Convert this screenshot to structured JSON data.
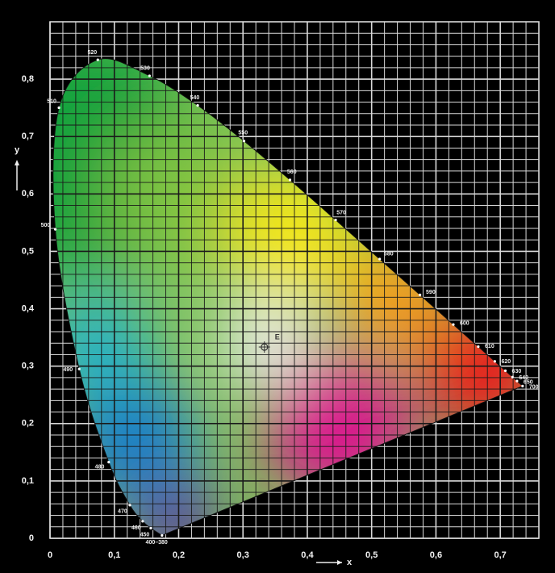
{
  "chart_data": {
    "type": "chromaticity",
    "x_label": "x",
    "y_label": "y",
    "xlim": [
      0,
      0.76
    ],
    "ylim": [
      0,
      0.9
    ],
    "xticks": [
      0,
      {
        "value": 0.1,
        "label": "0,1"
      },
      {
        "value": 0.2,
        "label": "0,2"
      },
      {
        "value": 0.3,
        "label": "0,3"
      },
      {
        "value": 0.4,
        "label": "0,4"
      },
      {
        "value": 0.5,
        "label": "0,5"
      },
      {
        "value": 0.6,
        "label": "0,6"
      },
      {
        "value": 0.7,
        "label": "0,7"
      }
    ],
    "yticks": [
      0,
      {
        "value": 0.1,
        "label": "0,1"
      },
      {
        "value": 0.2,
        "label": "0,2"
      },
      {
        "value": 0.3,
        "label": "0,3"
      },
      {
        "value": 0.4,
        "label": "0,4"
      },
      {
        "value": 0.5,
        "label": "0,5"
      },
      {
        "value": 0.6,
        "label": "0,6"
      },
      {
        "value": 0.7,
        "label": "0,7"
      },
      {
        "value": 0.8,
        "label": "0,8"
      }
    ],
    "xminor": [
      0.02,
      0.04,
      0.06,
      0.08,
      0.12,
      0.14,
      0.16,
      0.18,
      0.22,
      0.24,
      0.26,
      0.28,
      0.32,
      0.34,
      0.36,
      0.38,
      0.42,
      0.44,
      0.46,
      0.48,
      0.52,
      0.54,
      0.56,
      0.58,
      0.62,
      0.64,
      0.66,
      0.68,
      0.72,
      0.74
    ],
    "yminor": [
      0.02,
      0.04,
      0.06,
      0.08,
      0.12,
      0.14,
      0.16,
      0.18,
      0.22,
      0.24,
      0.26,
      0.28,
      0.32,
      0.34,
      0.36,
      0.38,
      0.42,
      0.44,
      0.46,
      0.48,
      0.52,
      0.54,
      0.56,
      0.58,
      0.62,
      0.64,
      0.66,
      0.68,
      0.72,
      0.74,
      0.76,
      0.78,
      0.82,
      0.84,
      0.86,
      0.88
    ],
    "grid": true,
    "locus": {
      "labels": [
        "400–380",
        "450",
        "460",
        "470",
        "480",
        "490",
        "500",
        "510",
        "520",
        "530",
        "540",
        "550",
        "560",
        "570",
        "580",
        "590",
        "600",
        "610",
        "620",
        "630",
        "640",
        "650",
        "700"
      ],
      "x": [
        0.1741,
        0.1566,
        0.144,
        0.1241,
        0.0913,
        0.0454,
        0.0082,
        0.0139,
        0.0743,
        0.1547,
        0.2296,
        0.3016,
        0.3731,
        0.4441,
        0.5125,
        0.5752,
        0.627,
        0.6658,
        0.6915,
        0.7079,
        0.719,
        0.726,
        0.7347
      ],
      "y": [
        0.005,
        0.0177,
        0.0297,
        0.0578,
        0.1327,
        0.295,
        0.5384,
        0.7502,
        0.8338,
        0.8059,
        0.7543,
        0.6923,
        0.6245,
        0.5547,
        0.4866,
        0.4242,
        0.3725,
        0.334,
        0.3083,
        0.292,
        0.2809,
        0.274,
        0.2653
      ]
    },
    "white_point": {
      "label": "E",
      "x": 0.3333,
      "y": 0.3333
    }
  }
}
